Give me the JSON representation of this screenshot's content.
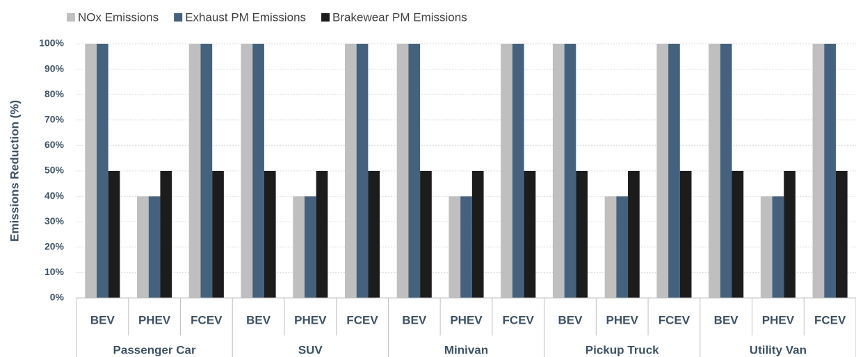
{
  "chart_data": {
    "type": "bar",
    "y_label": "Emissions Reduction (%)",
    "categories": [
      "BEV",
      "PHEV",
      "FCEV",
      "BEV",
      "PHEV",
      "FCEV",
      "BEV",
      "PHEV",
      "FCEV",
      "BEV",
      "PHEV",
      "FCEV",
      "BEV",
      "PHEV",
      "FCEV"
    ],
    "groups": [
      "Passenger Car",
      "SUV",
      "Minivan",
      "Pickup Truck",
      "Utility Van"
    ],
    "series": [
      {
        "name": "NOx Emissions",
        "color": "#bfbfbf",
        "values": [
          100,
          40,
          100,
          100,
          40,
          100,
          100,
          40,
          100,
          100,
          40,
          100,
          100,
          40,
          100
        ]
      },
      {
        "name": "Exhaust PM Emissions",
        "color": "#44627d",
        "values": [
          100,
          40,
          100,
          100,
          40,
          100,
          100,
          40,
          100,
          100,
          40,
          100,
          100,
          40,
          100
        ]
      },
      {
        "name": "Brakewear PM Emissions",
        "color": "#1c1c1c",
        "values": [
          50,
          50,
          50,
          50,
          50,
          50,
          50,
          50,
          50,
          50,
          50,
          50,
          50,
          50,
          50
        ]
      }
    ],
    "ylim": [
      0,
      100
    ],
    "yticks": [
      {
        "value": 0,
        "label": "0%"
      },
      {
        "value": 10,
        "label": "10%"
      },
      {
        "value": 20,
        "label": "20%"
      },
      {
        "value": 30,
        "label": "30%"
      },
      {
        "value": 40,
        "label": "40%"
      },
      {
        "value": 50,
        "label": "50%"
      },
      {
        "value": 60,
        "label": "60%"
      },
      {
        "value": 70,
        "label": "70%"
      },
      {
        "value": 80,
        "label": "80%"
      },
      {
        "value": 90,
        "label": "90%"
      },
      {
        "value": 100,
        "label": "100%"
      }
    ],
    "grid": true,
    "legend": "top"
  }
}
